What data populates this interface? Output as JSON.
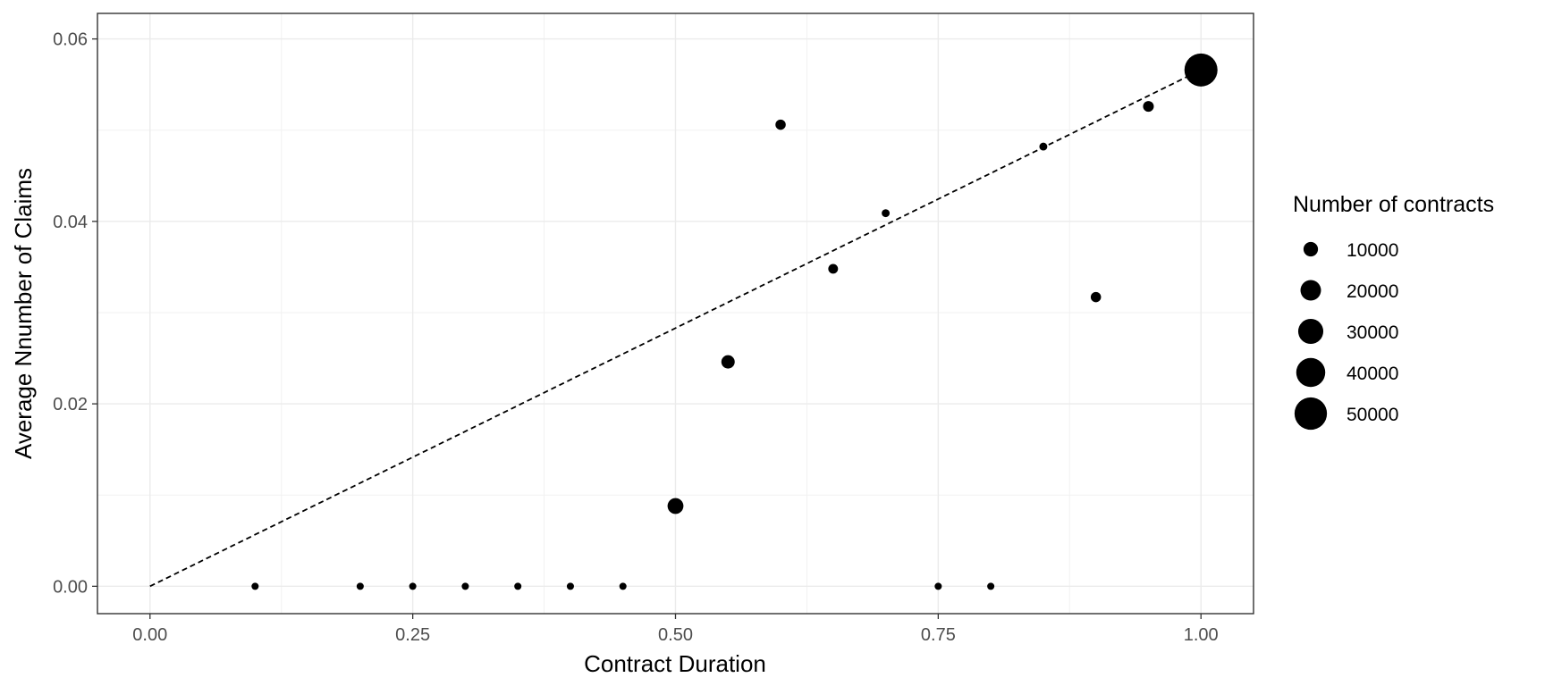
{
  "chart_data": {
    "type": "scatter",
    "title": "",
    "xlabel": "Contract Duration",
    "ylabel": "Average Nnumber of Claims",
    "xlim": [
      -0.05,
      1.05
    ],
    "ylim": [
      -0.003,
      0.0628
    ],
    "x_ticks": [
      0.0,
      0.25,
      0.5,
      0.75,
      1.0
    ],
    "x_tick_labels": [
      "0.00",
      "0.25",
      "0.50",
      "0.75",
      "1.00"
    ],
    "y_ticks": [
      0.0,
      0.02,
      0.04,
      0.06
    ],
    "y_tick_labels": [
      "0.00",
      "0.02",
      "0.04",
      "0.06"
    ],
    "grid": true,
    "series": [
      {
        "x": [
          0.1,
          0.2,
          0.25,
          0.3,
          0.35,
          0.4,
          0.45,
          0.5,
          0.55,
          0.6,
          0.65,
          0.7,
          0.75,
          0.8,
          0.85,
          0.9,
          0.95,
          1.0
        ],
        "y": [
          0.0,
          0.0,
          0.0,
          0.0,
          0.0,
          0.0,
          0.0,
          0.0088,
          0.0246,
          0.0506,
          0.0348,
          0.0409,
          0.0,
          0.0,
          0.0482,
          0.0317,
          0.0526,
          0.0566
        ],
        "size": [
          300,
          300,
          350,
          350,
          350,
          350,
          350,
          12000,
          8500,
          5000,
          4500,
          3000,
          350,
          450,
          3000,
          5000,
          5500,
          52000
        ]
      }
    ],
    "reference_line": {
      "style": "dashed",
      "from": [
        0.0,
        0.0
      ],
      "to": [
        1.0,
        0.0566
      ]
    },
    "legend": {
      "title": "Number of contracts",
      "position": "right",
      "items": [
        {
          "label": "10000",
          "value": 10000
        },
        {
          "label": "20000",
          "value": 20000
        },
        {
          "label": "30000",
          "value": 30000
        },
        {
          "label": "40000",
          "value": 40000
        },
        {
          "label": "50000",
          "value": 50000
        }
      ]
    }
  }
}
